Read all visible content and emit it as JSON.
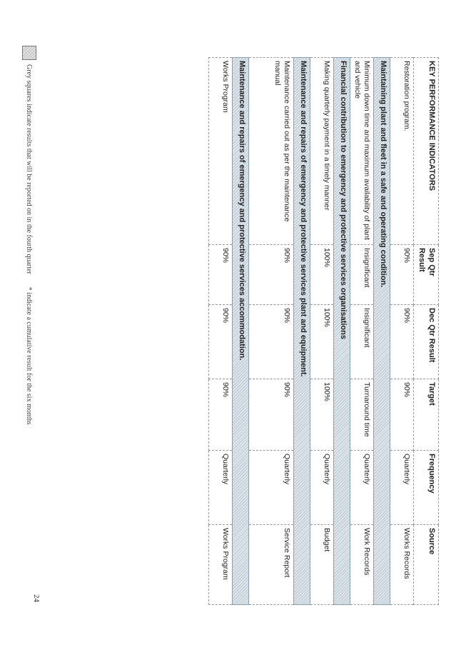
{
  "table": {
    "headers": [
      "KEY PERFORMANCE INDICATORS",
      "Sep Qtr Result",
      "Dec Qtr Result",
      "Target",
      "Frequency",
      "Source"
    ],
    "rows": [
      {
        "kind": "row",
        "cells": [
          "Restoration program.",
          "90%",
          "90%",
          "90%",
          "Quarterly",
          "Works Records"
        ]
      },
      {
        "kind": "section",
        "text": "Maintaining plant and fleet in a safe and operating condition."
      },
      {
        "kind": "row",
        "cells": [
          "Minimum down time and maximum availability of plant and vehicle",
          "Insignificant",
          "Insignificant",
          "Turnaround time",
          "Quarterly",
          "Work Records"
        ]
      },
      {
        "kind": "section",
        "text": "Financial contribution to emergency and protective services organisations"
      },
      {
        "kind": "row",
        "cells": [
          "Making quarterly payment in a timely manner",
          "100%",
          "100%",
          "100%",
          "Quarterly",
          "Budget"
        ]
      },
      {
        "kind": "section",
        "text": "Maintenance and repairs of emergency and protective services plant and equipment."
      },
      {
        "kind": "row",
        "tall": true,
        "cells": [
          "Maintenance carried out as per the maintenance manual",
          "90%",
          "90%",
          "90%",
          "Quarterly",
          "Service Report"
        ]
      },
      {
        "kind": "section",
        "text": "Maintenance and repairs of emergency and protective services accommodation."
      },
      {
        "kind": "row",
        "cells": [
          "Works Program",
          "90%",
          "90%",
          "90%",
          "Quarterly",
          "Works Program"
        ]
      }
    ]
  },
  "footer": {
    "legend_text": "Grey squares indicate results that will be reported on in the fourth quarter",
    "cumulative_note": "* indicate a cumulative result for the six months"
  },
  "page_number": "24",
  "colors": {
    "section_fill": "#dde6ec",
    "grey_square": "#e4e4e4"
  }
}
